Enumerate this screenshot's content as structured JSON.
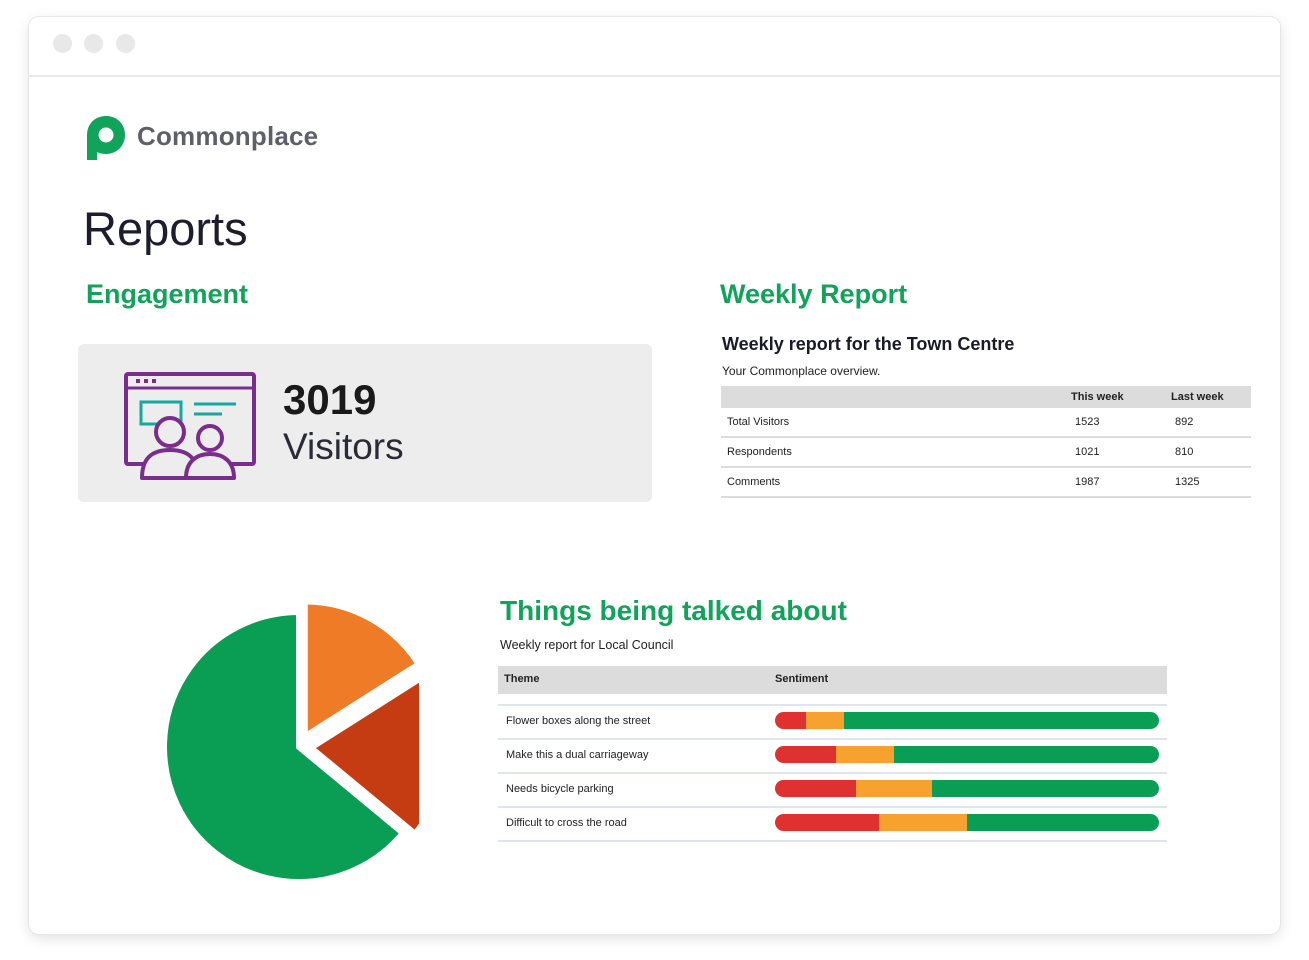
{
  "app": {
    "brand": "Commonplace"
  },
  "page": {
    "title": "Reports"
  },
  "engagement": {
    "heading": "Engagement",
    "visitors_count": "3019",
    "visitors_label": "Visitors"
  },
  "weekly": {
    "heading": "Weekly Report",
    "title": "Weekly report for the Town Centre",
    "subtitle": "Your Commonplace overview.",
    "columns": [
      "",
      "This week",
      "Last week"
    ],
    "rows": [
      {
        "label": "Total Visitors",
        "this_week": "1523",
        "last_week": "892"
      },
      {
        "label": "Respondents",
        "this_week": "1021",
        "last_week": "810"
      },
      {
        "label": "Comments",
        "this_week": "1987",
        "last_week": "1325"
      }
    ]
  },
  "talked": {
    "heading": "Things being talked about",
    "subtitle": "Weekly report for Local Council",
    "columns": [
      "Theme",
      "Sentiment"
    ],
    "rows": [
      {
        "theme": "Flower boxes along the street",
        "sentiment": {
          "negative": 8,
          "neutral": 10,
          "positive": 82
        }
      },
      {
        "theme": "Make this a dual carriageway",
        "sentiment": {
          "negative": 16,
          "neutral": 15,
          "positive": 69
        }
      },
      {
        "theme": "Needs bicycle parking",
        "sentiment": {
          "negative": 21,
          "neutral": 20,
          "positive": 59
        }
      },
      {
        "theme": "Difficult to cross the road",
        "sentiment": {
          "negative": 27,
          "neutral": 23,
          "positive": 50
        }
      }
    ]
  },
  "pie": {
    "slices": [
      {
        "value": 16,
        "color": "#ef7b26"
      },
      {
        "value": 20,
        "color": "#c63c12"
      },
      {
        "value": 64,
        "color": "#0a9e55"
      }
    ]
  },
  "colors": {
    "brand_green": "#10a45a",
    "negative": "#e03131",
    "neutral": "#f7a12e",
    "positive": "#0a9e55",
    "icon_purple": "#7a2d8c",
    "icon_teal": "#12a9a0"
  }
}
